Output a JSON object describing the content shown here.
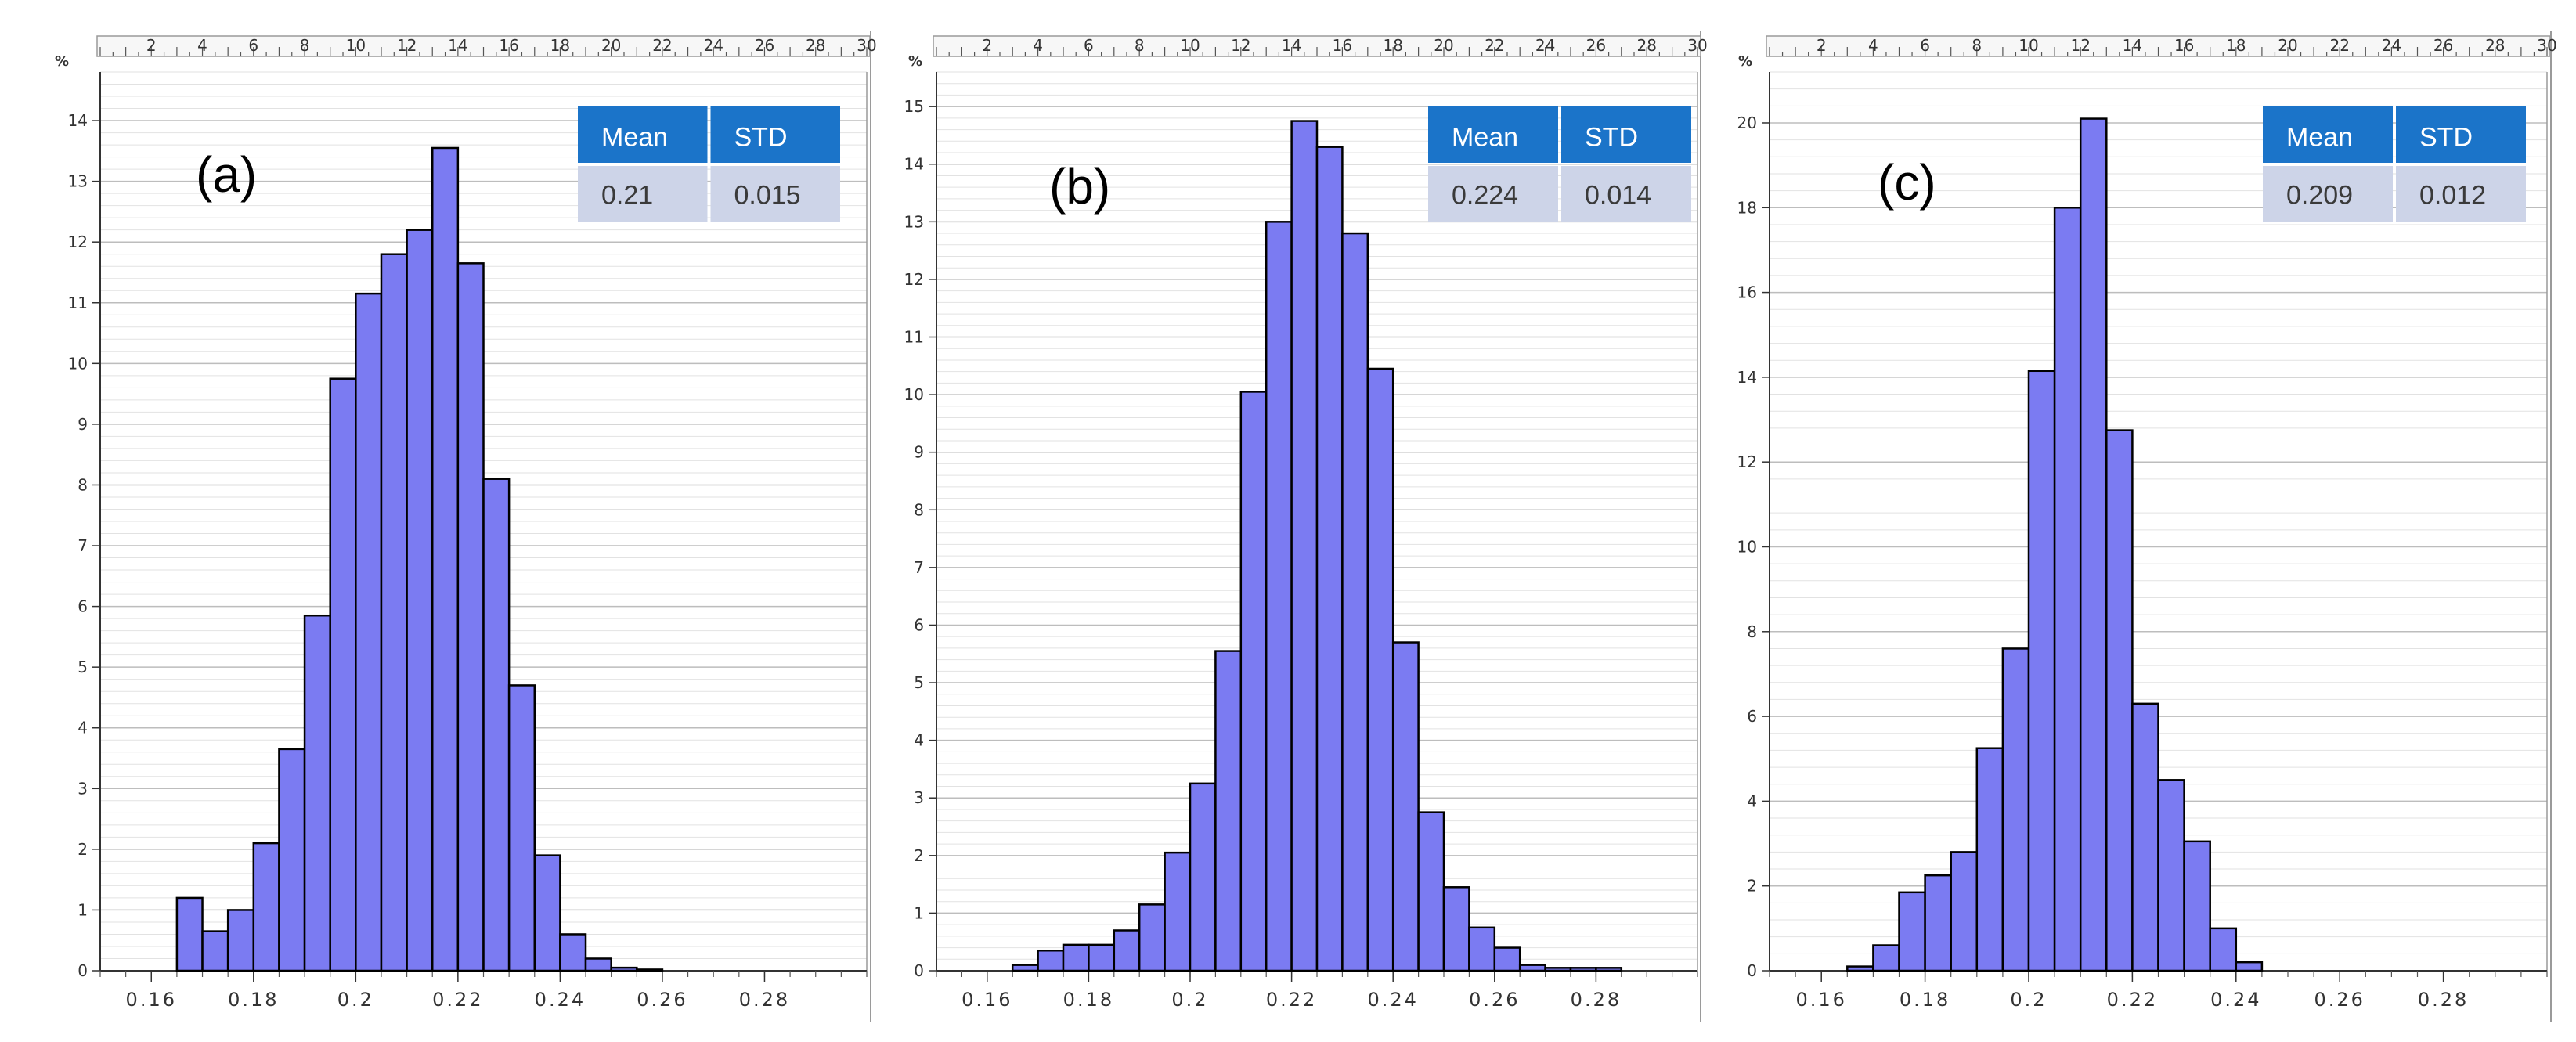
{
  "colors": {
    "bar_fill": "#7b7bf2",
    "bar_stroke": "#000000",
    "table_header": "#1b74c9",
    "table_cell": "#cdd4e8",
    "grid_minor": "#e2e2e2",
    "grid_major": "#bdbdbd"
  },
  "chart_data": [
    {
      "type": "bar",
      "panel_label": "(a)",
      "y_unit_label": "%",
      "x_ticks": [
        "0.16",
        "0.18",
        "0.2",
        "0.22",
        "0.24",
        "0.26",
        "0.28"
      ],
      "top_ticks": [
        "2",
        "4",
        "6",
        "8",
        "10",
        "12",
        "14",
        "16",
        "18",
        "20",
        "22",
        "24",
        "26",
        "28",
        "30"
      ],
      "y_ticks": [
        "0",
        "1",
        "2",
        "3",
        "4",
        "5",
        "6",
        "7",
        "8",
        "9",
        "10",
        "11",
        "12",
        "13",
        "14"
      ],
      "xlim": [
        0.15,
        0.3
      ],
      "ylim": [
        0,
        14.8
      ],
      "bin_width": 0.005,
      "bin_starts": [
        0.165,
        0.17,
        0.175,
        0.18,
        0.185,
        0.19,
        0.195,
        0.2,
        0.205,
        0.21,
        0.215,
        0.22,
        0.225,
        0.23,
        0.235,
        0.24,
        0.245,
        0.25,
        0.255
      ],
      "values": [
        1.2,
        0.65,
        1.0,
        2.1,
        3.65,
        5.85,
        9.75,
        11.15,
        11.8,
        12.2,
        13.55,
        11.65,
        8.1,
        4.7,
        1.9,
        0.6,
        0.2,
        0.05,
        0.02
      ],
      "stats": {
        "headers": [
          "Mean",
          "STD"
        ],
        "values": [
          "0.21",
          "0.015"
        ]
      }
    },
    {
      "type": "bar",
      "panel_label": "(b)",
      "y_unit_label": "%",
      "x_ticks": [
        "0.16",
        "0.18",
        "0.2",
        "0.22",
        "0.24",
        "0.26",
        "0.28"
      ],
      "top_ticks": [
        "2",
        "4",
        "6",
        "8",
        "10",
        "12",
        "14",
        "16",
        "18",
        "20",
        "22",
        "24",
        "26",
        "28",
        "30"
      ],
      "y_ticks": [
        "0",
        "1",
        "2",
        "3",
        "4",
        "5",
        "6",
        "7",
        "8",
        "9",
        "10",
        "11",
        "12",
        "13",
        "14",
        "15"
      ],
      "xlim": [
        0.15,
        0.3
      ],
      "ylim": [
        0,
        15.6
      ],
      "bin_width": 0.005,
      "bin_starts": [
        0.165,
        0.17,
        0.175,
        0.18,
        0.185,
        0.19,
        0.195,
        0.2,
        0.205,
        0.21,
        0.215,
        0.22,
        0.225,
        0.23,
        0.235,
        0.24,
        0.245,
        0.25,
        0.255,
        0.26,
        0.265,
        0.27,
        0.275,
        0.28
      ],
      "values": [
        0.1,
        0.35,
        0.45,
        0.45,
        0.7,
        1.15,
        2.05,
        3.25,
        5.55,
        10.05,
        13.0,
        14.75,
        14.3,
        12.8,
        10.45,
        5.7,
        2.75,
        1.45,
        0.75,
        0.4,
        0.1,
        0.05,
        0.05,
        0.05
      ],
      "stats": {
        "headers": [
          "Mean",
          "STD"
        ],
        "values": [
          "0.224",
          "0.014"
        ]
      }
    },
    {
      "type": "bar",
      "panel_label": "(c)",
      "y_unit_label": "%",
      "x_ticks": [
        "0.16",
        "0.18",
        "0.2",
        "0.22",
        "0.24",
        "0.26",
        "0.28"
      ],
      "top_ticks": [
        "2",
        "4",
        "6",
        "8",
        "10",
        "12",
        "14",
        "16",
        "18",
        "20",
        "22",
        "24",
        "26",
        "28",
        "30"
      ],
      "y_ticks": [
        "0",
        "2",
        "4",
        "6",
        "8",
        "10",
        "12",
        "14",
        "16",
        "18",
        "20"
      ],
      "xlim": [
        0.15,
        0.3
      ],
      "ylim": [
        0,
        21.2
      ],
      "bin_width": 0.005,
      "bin_starts": [
        0.165,
        0.17,
        0.175,
        0.18,
        0.185,
        0.19,
        0.195,
        0.2,
        0.205,
        0.21,
        0.215,
        0.22,
        0.225,
        0.23,
        0.235,
        0.24
      ],
      "values": [
        0.1,
        0.6,
        1.85,
        2.25,
        2.8,
        5.25,
        7.6,
        14.15,
        18.0,
        20.1,
        12.75,
        6.3,
        4.5,
        3.05,
        1.0,
        0.2
      ],
      "stats": {
        "headers": [
          "Mean",
          "STD"
        ],
        "values": [
          "0.209",
          "0.012"
        ]
      }
    }
  ]
}
